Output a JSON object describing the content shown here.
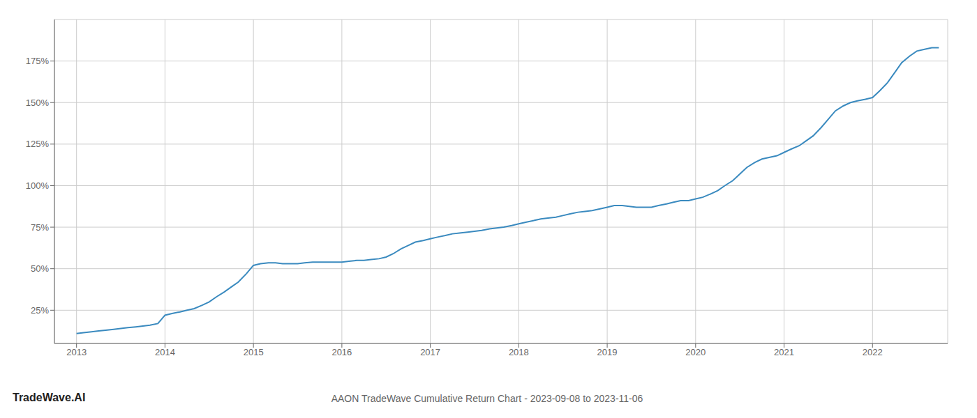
{
  "chart_data": {
    "type": "line",
    "title": "AAON TradeWave Cumulative Return Chart - 2023-09-08 to 2023-11-06",
    "annotations": [
      "TradeWave.AI"
    ],
    "color": "#3a8abf",
    "grid": true,
    "x": [
      2013.0,
      2013.08,
      2013.17,
      2013.25,
      2013.33,
      2013.42,
      2013.5,
      2013.58,
      2013.67,
      2013.75,
      2013.83,
      2013.92,
      2014.0,
      2014.08,
      2014.17,
      2014.25,
      2014.33,
      2014.42,
      2014.5,
      2014.58,
      2014.67,
      2014.75,
      2014.83,
      2014.92,
      2015.0,
      2015.08,
      2015.17,
      2015.25,
      2015.33,
      2015.42,
      2015.5,
      2015.58,
      2015.67,
      2015.75,
      2015.83,
      2015.92,
      2016.0,
      2016.08,
      2016.17,
      2016.25,
      2016.33,
      2016.42,
      2016.5,
      2016.58,
      2016.67,
      2016.75,
      2016.83,
      2016.92,
      2017.0,
      2017.08,
      2017.17,
      2017.25,
      2017.33,
      2017.42,
      2017.5,
      2017.58,
      2017.67,
      2017.75,
      2017.83,
      2017.92,
      2018.0,
      2018.08,
      2018.17,
      2018.25,
      2018.33,
      2018.42,
      2018.5,
      2018.58,
      2018.67,
      2018.75,
      2018.83,
      2018.92,
      2019.0,
      2019.08,
      2019.17,
      2019.25,
      2019.33,
      2019.42,
      2019.5,
      2019.58,
      2019.67,
      2019.75,
      2019.83,
      2019.92,
      2020.0,
      2020.08,
      2020.17,
      2020.25,
      2020.33,
      2020.42,
      2020.5,
      2020.58,
      2020.67,
      2020.75,
      2020.83,
      2020.92,
      2021.0,
      2021.08,
      2021.17,
      2021.25,
      2021.33,
      2021.42,
      2021.5,
      2021.58,
      2021.67,
      2021.75,
      2021.83,
      2021.92,
      2022.0,
      2022.08,
      2022.17,
      2022.25,
      2022.33,
      2022.42,
      2022.5,
      2022.58,
      2022.67,
      2022.75
    ],
    "values": [
      11,
      11.5,
      12,
      12.5,
      13,
      13.5,
      14,
      14.5,
      15,
      15.5,
      16,
      17,
      22,
      23,
      24,
      25,
      26,
      28,
      30,
      33,
      36,
      39,
      42,
      47,
      52,
      53,
      53.5,
      53.5,
      53,
      53,
      53,
      53.5,
      54,
      54,
      54,
      54,
      54,
      54.5,
      55,
      55,
      55.5,
      56,
      57,
      59,
      62,
      64,
      66,
      67,
      68,
      69,
      70,
      71,
      71.5,
      72,
      72.5,
      73,
      74,
      74.5,
      75,
      76,
      77,
      78,
      79,
      80,
      80.5,
      81,
      82,
      83,
      84,
      84.5,
      85,
      86,
      87,
      88,
      88,
      87.5,
      87,
      87,
      87,
      88,
      89,
      90,
      91,
      91,
      92,
      93,
      95,
      97,
      100,
      103,
      107,
      111,
      114,
      116,
      117,
      118,
      120,
      122,
      124,
      127,
      130,
      135,
      140,
      145,
      148,
      150,
      151,
      152,
      153,
      157,
      162,
      168,
      174,
      178,
      181,
      182,
      183,
      183
    ],
    "xlim": [
      2012.75,
      2022.85
    ],
    "xticks": [
      2013,
      2014,
      2015,
      2016,
      2017,
      2018,
      2019,
      2020,
      2021,
      2022
    ],
    "ylim": [
      5,
      200
    ],
    "yticks": [
      {
        "value": 25,
        "label": "25%"
      },
      {
        "value": 50,
        "label": "50%"
      },
      {
        "value": 75,
        "label": "75%"
      },
      {
        "value": 100,
        "label": "100%"
      },
      {
        "value": 125,
        "label": "125%"
      },
      {
        "value": 150,
        "label": "150%"
      },
      {
        "value": 175,
        "label": "175%"
      }
    ]
  }
}
